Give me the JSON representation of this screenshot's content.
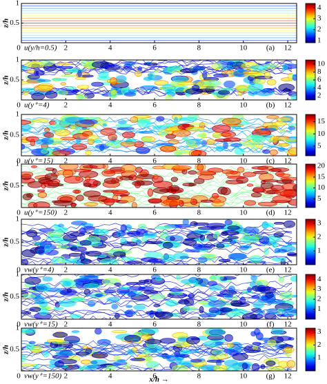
{
  "chart_data": [
    {
      "type": "contour",
      "label": "u(y/h=0.5)",
      "panel_label": "(a)",
      "ylabel": "z/h",
      "xlim": [
        0,
        12.4
      ],
      "xticks": [
        0,
        2,
        4,
        6,
        8,
        10,
        12
      ],
      "ylim": [
        0,
        1
      ],
      "yticks": [
        0.5,
        1
      ],
      "colormap": "jet",
      "clim": [
        0.8,
        4.4
      ],
      "cticks": [
        1,
        2,
        3,
        4
      ]
    },
    {
      "type": "contour",
      "label": "u(y⁺=4)",
      "panel_label": "(b)",
      "ylabel": "z/h",
      "xlim": [
        0,
        12.4
      ],
      "xticks": [
        0,
        2,
        4,
        6,
        8,
        10,
        12
      ],
      "ylim": [
        0,
        1
      ],
      "yticks": [
        0.5,
        1
      ],
      "colormap": "jet",
      "clim": [
        1,
        11
      ],
      "cticks": [
        2,
        4,
        6,
        8,
        10
      ]
    },
    {
      "type": "contour",
      "label": "u(y⁺=15)",
      "panel_label": "(c)",
      "ylabel": "z/h",
      "xlim": [
        0,
        12.4
      ],
      "xticks": [
        0,
        2,
        4,
        6,
        8,
        10,
        12
      ],
      "ylim": [
        0,
        1
      ],
      "yticks": [
        0.5,
        1
      ],
      "colormap": "jet",
      "clim": [
        1,
        18
      ],
      "cticks": [
        5,
        10,
        15
      ]
    },
    {
      "type": "contour",
      "label": "u(y⁺=150)",
      "panel_label": "(d)",
      "ylabel": "z/h",
      "xlim": [
        0,
        12.4
      ],
      "xticks": [
        0,
        2,
        4,
        6,
        8,
        10,
        12
      ],
      "ylim": [
        0,
        1
      ],
      "yticks": [
        0.5,
        1
      ],
      "colormap": "jet",
      "clim": [
        1,
        21
      ],
      "cticks": [
        5,
        10,
        15,
        20
      ]
    },
    {
      "type": "contour",
      "label": "vw(y⁺=4)",
      "panel_label": "(e)",
      "ylabel": "z/h",
      "xlim": [
        0,
        12.4
      ],
      "xticks": [
        0,
        2,
        4,
        6,
        8,
        10,
        12
      ],
      "ylim": [
        0,
        1
      ],
      "yticks": [
        0.5,
        1
      ],
      "colormap": "jet",
      "clim": [
        0,
        3.3
      ],
      "cticks": [
        1,
        2,
        3
      ]
    },
    {
      "type": "contour",
      "label": "vw(y⁺=15)",
      "panel_label": "(f)",
      "ylabel": "z/h",
      "xlim": [
        0,
        12.4
      ],
      "xticks": [
        0,
        2,
        4,
        6,
        8,
        10,
        12
      ],
      "ylim": [
        0,
        1
      ],
      "yticks": [
        0.5,
        1
      ],
      "colormap": "jet",
      "clim": [
        0,
        4.5
      ],
      "cticks": [
        1,
        2,
        3,
        4
      ]
    },
    {
      "type": "contour",
      "label": "vw(y⁺=150)",
      "panel_label": "(g)",
      "ylabel": "z/h",
      "xlabel": "x/h →",
      "xlim": [
        0,
        12.4
      ],
      "xticks": [
        0,
        2,
        4,
        6,
        8,
        10,
        12
      ],
      "ylim": [
        0,
        1
      ],
      "yticks": [
        0.5,
        1
      ],
      "colormap": "jet",
      "clim": [
        0,
        3.3
      ],
      "cticks": [
        1,
        2,
        3
      ]
    }
  ]
}
